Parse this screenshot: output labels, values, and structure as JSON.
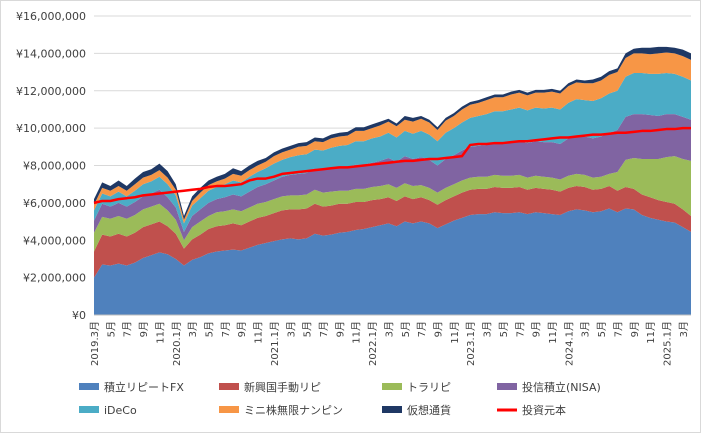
{
  "chart_data": {
    "type": "area",
    "stacked": true,
    "title": "",
    "xlabel": "",
    "ylabel": "",
    "ylim": [
      0,
      16000000
    ],
    "yticks": [
      "¥0",
      "¥2,000,000",
      "¥4,000,000",
      "¥6,000,000",
      "¥8,000,000",
      "¥10,000,000",
      "¥12,000,000",
      "¥14,000,000",
      "¥16,000,000"
    ],
    "grid": true,
    "legend": "bottom",
    "x": [
      "2019.3月",
      "4月",
      "5月",
      "6月",
      "7月",
      "8月",
      "9月",
      "10月",
      "11月",
      "12月",
      "2020.1月",
      "2月",
      "3月",
      "4月",
      "5月",
      "6月",
      "7月",
      "8月",
      "9月",
      "10月",
      "11月",
      "12月",
      "2021.1月",
      "2月",
      "3月",
      "4月",
      "5月",
      "6月",
      "7月",
      "8月",
      "9月",
      "10月",
      "11月",
      "12月",
      "2022.1月",
      "2月",
      "3月",
      "4月",
      "5月",
      "6月",
      "7月",
      "8月",
      "9月",
      "10月",
      "11月",
      "12月",
      "2023.1月",
      "2月",
      "3月",
      "4月",
      "5月",
      "6月",
      "7月",
      "8月",
      "9月",
      "10月",
      "11月",
      "12月",
      "2024.1月",
      "2月",
      "3月",
      "4月",
      "5月",
      "6月",
      "7月",
      "8月",
      "9月",
      "10月",
      "11月",
      "12月",
      "2025.1月",
      "2月",
      "3月",
      "4月"
    ],
    "xtick_labels": [
      "2019.3月",
      "5月",
      "7月",
      "9月",
      "11月",
      "2020.1月",
      "3月",
      "5月",
      "7月",
      "9月",
      "11月",
      "2021.1月",
      "3月",
      "5月",
      "7月",
      "9月",
      "11月",
      "2022.1月",
      "3月",
      "5月",
      "7月",
      "9月",
      "11月",
      "2023.1月",
      "3月",
      "5月",
      "7月",
      "9月",
      "11月",
      "2024.1月",
      "3月",
      "5月",
      "7月",
      "9月",
      "11月",
      "2025.1月",
      "3月"
    ],
    "series": [
      {
        "name": "積立リピートFX",
        "color": "#4f81bd",
        "values": [
          2000000,
          2700000,
          2650000,
          2750000,
          2650000,
          2800000,
          3050000,
          3200000,
          3350000,
          3250000,
          3000000,
          2650000,
          2950000,
          3100000,
          3300000,
          3400000,
          3450000,
          3500000,
          3450000,
          3600000,
          3750000,
          3850000,
          3950000,
          4050000,
          4100000,
          4050000,
          4100000,
          4350000,
          4250000,
          4300000,
          4400000,
          4450000,
          4550000,
          4600000,
          4700000,
          4800000,
          4900000,
          4750000,
          5000000,
          4900000,
          5000000,
          4900000,
          4650000,
          4850000,
          5050000,
          5200000,
          5350000,
          5400000,
          5400000,
          5500000,
          5450000,
          5450000,
          5500000,
          5400000,
          5500000,
          5450000,
          5400000,
          5350000,
          5550000,
          5650000,
          5600000,
          5500000,
          5550000,
          5700000,
          5500000,
          5700000,
          5650000,
          5350000,
          5200000,
          5100000,
          5000000,
          4950000,
          4700000,
          4450000
        ]
      },
      {
        "name": "新興国手動リピ",
        "color": "#c0504d",
        "values": [
          1400000,
          1600000,
          1550000,
          1600000,
          1550000,
          1600000,
          1650000,
          1650000,
          1650000,
          1500000,
          1350000,
          900000,
          1100000,
          1200000,
          1300000,
          1350000,
          1350000,
          1400000,
          1350000,
          1400000,
          1450000,
          1450000,
          1500000,
          1550000,
          1550000,
          1600000,
          1600000,
          1600000,
          1550000,
          1550000,
          1550000,
          1500000,
          1500000,
          1450000,
          1450000,
          1400000,
          1400000,
          1350000,
          1350000,
          1300000,
          1300000,
          1250000,
          1250000,
          1300000,
          1300000,
          1350000,
          1350000,
          1350000,
          1350000,
          1350000,
          1350000,
          1350000,
          1350000,
          1300000,
          1300000,
          1300000,
          1300000,
          1250000,
          1250000,
          1250000,
          1250000,
          1200000,
          1200000,
          1200000,
          1150000,
          1150000,
          1100000,
          1100000,
          1100000,
          1050000,
          1050000,
          1000000,
          950000,
          850000
        ]
      },
      {
        "name": "トラリピ",
        "color": "#9bbb59",
        "values": [
          1000000,
          950000,
          950000,
          950000,
          950000,
          950000,
          950000,
          950000,
          950000,
          850000,
          750000,
          450000,
          650000,
          700000,
          700000,
          750000,
          750000,
          750000,
          750000,
          750000,
          750000,
          750000,
          750000,
          750000,
          750000,
          750000,
          750000,
          750000,
          750000,
          750000,
          700000,
          700000,
          700000,
          700000,
          700000,
          700000,
          700000,
          700000,
          700000,
          700000,
          650000,
          650000,
          650000,
          650000,
          650000,
          650000,
          650000,
          650000,
          650000,
          650000,
          650000,
          650000,
          650000,
          650000,
          650000,
          650000,
          650000,
          650000,
          650000,
          650000,
          650000,
          650000,
          650000,
          650000,
          1000000,
          1450000,
          1650000,
          1900000,
          2050000,
          2200000,
          2400000,
          2550000,
          2700000,
          2950000
        ]
      },
      {
        "name": "投信積立(NISA)",
        "color": "#8064a2",
        "values": [
          650000,
          700000,
          650000,
          700000,
          650000,
          700000,
          700000,
          700000,
          750000,
          700000,
          650000,
          450000,
          600000,
          650000,
          700000,
          700000,
          750000,
          800000,
          800000,
          850000,
          900000,
          950000,
          1000000,
          1050000,
          1100000,
          1150000,
          1150000,
          1150000,
          1200000,
          1250000,
          1250000,
          1250000,
          1300000,
          1300000,
          1300000,
          1350000,
          1400000,
          1400000,
          1450000,
          1450000,
          1500000,
          1500000,
          1450000,
          1550000,
          1550000,
          1600000,
          1650000,
          1650000,
          1700000,
          1700000,
          1750000,
          1800000,
          1800000,
          1850000,
          1850000,
          1850000,
          1900000,
          1900000,
          2000000,
          2050000,
          2050000,
          2100000,
          2150000,
          2200000,
          2250000,
          2300000,
          2350000,
          2400000,
          2350000,
          2300000,
          2300000,
          2250000,
          2250000,
          2200000
        ]
      },
      {
        "name": "iDeCo",
        "color": "#4bacc6",
        "values": [
          550000,
          550000,
          550000,
          600000,
          550000,
          600000,
          650000,
          650000,
          700000,
          700000,
          650000,
          450000,
          550000,
          600000,
          650000,
          650000,
          700000,
          750000,
          750000,
          800000,
          800000,
          850000,
          900000,
          900000,
          950000,
          1000000,
          1000000,
          1000000,
          1050000,
          1100000,
          1150000,
          1200000,
          1250000,
          1250000,
          1300000,
          1300000,
          1350000,
          1300000,
          1350000,
          1350000,
          1400000,
          1350000,
          1300000,
          1400000,
          1450000,
          1500000,
          1550000,
          1600000,
          1650000,
          1700000,
          1700000,
          1750000,
          1800000,
          1750000,
          1800000,
          1800000,
          1850000,
          1850000,
          1900000,
          1950000,
          1950000,
          2000000,
          2050000,
          2100000,
          2100000,
          2150000,
          2200000,
          2200000,
          2200000,
          2250000,
          2200000,
          2150000,
          2150000,
          2100000
        ]
      },
      {
        "name": "ミニ株無限ナンピン",
        "color": "#f79646",
        "values": [
          300000,
          300000,
          300000,
          300000,
          300000,
          350000,
          350000,
          350000,
          350000,
          350000,
          300000,
          200000,
          250000,
          300000,
          300000,
          300000,
          300000,
          350000,
          350000,
          350000,
          350000,
          350000,
          400000,
          400000,
          400000,
          450000,
          450000,
          450000,
          450000,
          500000,
          500000,
          500000,
          550000,
          550000,
          550000,
          600000,
          600000,
          600000,
          600000,
          650000,
          650000,
          650000,
          600000,
          650000,
          650000,
          700000,
          700000,
          700000,
          750000,
          750000,
          750000,
          800000,
          800000,
          800000,
          800000,
          850000,
          850000,
          850000,
          900000,
          900000,
          900000,
          950000,
          950000,
          1000000,
          1000000,
          1000000,
          1050000,
          1050000,
          1050000,
          1100000,
          1100000,
          1100000,
          1100000,
          1100000
        ]
      },
      {
        "name": "仮想通貨",
        "color": "#1f3864",
        "values": [
          300000,
          300000,
          250000,
          300000,
          250000,
          300000,
          300000,
          300000,
          350000,
          350000,
          300000,
          200000,
          250000,
          250000,
          250000,
          250000,
          250000,
          300000,
          250000,
          250000,
          250000,
          200000,
          200000,
          200000,
          200000,
          200000,
          200000,
          200000,
          200000,
          200000,
          200000,
          200000,
          200000,
          200000,
          200000,
          200000,
          150000,
          150000,
          200000,
          200000,
          150000,
          150000,
          150000,
          150000,
          150000,
          150000,
          150000,
          150000,
          150000,
          150000,
          150000,
          150000,
          150000,
          150000,
          150000,
          150000,
          150000,
          150000,
          150000,
          150000,
          150000,
          200000,
          200000,
          200000,
          200000,
          250000,
          250000,
          300000,
          350000,
          350000,
          300000,
          300000,
          350000,
          350000
        ]
      }
    ],
    "line": {
      "name": "投資元本",
      "color": "#ff0000",
      "values": [
        6000000,
        6100000,
        6100000,
        6200000,
        6250000,
        6300000,
        6400000,
        6450000,
        6500000,
        6550000,
        6600000,
        6650000,
        6700000,
        6750000,
        6850000,
        6900000,
        6900000,
        6950000,
        7000000,
        7200000,
        7300000,
        7300000,
        7400000,
        7550000,
        7600000,
        7650000,
        7700000,
        7750000,
        7800000,
        7850000,
        7900000,
        7900000,
        7950000,
        8000000,
        8050000,
        8100000,
        8150000,
        8200000,
        8250000,
        8250000,
        8300000,
        8350000,
        8350000,
        8400000,
        8450000,
        8500000,
        9100000,
        9150000,
        9150000,
        9200000,
        9200000,
        9250000,
        9300000,
        9300000,
        9350000,
        9400000,
        9450000,
        9500000,
        9500000,
        9550000,
        9600000,
        9650000,
        9650000,
        9700000,
        9750000,
        9750000,
        9800000,
        9850000,
        9850000,
        9900000,
        9950000,
        9950000,
        10000000,
        10000000
      ]
    }
  }
}
